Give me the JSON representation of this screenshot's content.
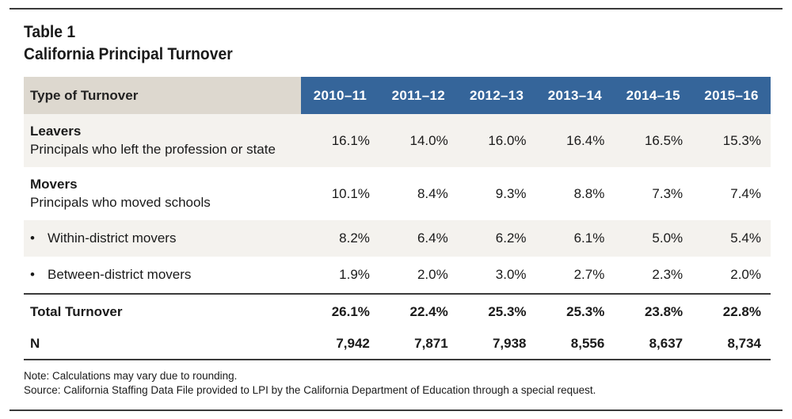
{
  "title": {
    "line1": "Table 1",
    "line2": "California Principal Turnover"
  },
  "table": {
    "header": {
      "label": "Type of Turnover",
      "years": [
        "2010–11",
        "2011–12",
        "2012–13",
        "2013–14",
        "2014–15",
        "2015–16"
      ]
    },
    "rows": [
      {
        "label": "Leavers",
        "sublabel": "Principals who left the profession or state",
        "values": [
          "16.1%",
          "14.0%",
          "16.0%",
          "16.4%",
          "16.5%",
          "15.3%"
        ]
      },
      {
        "label": "Movers",
        "sublabel": "Principals who moved schools",
        "values": [
          "10.1%",
          "8.4%",
          "9.3%",
          "8.8%",
          "7.3%",
          "7.4%"
        ]
      },
      {
        "bullet": "•",
        "label": "Within-district movers",
        "values": [
          "8.2%",
          "6.4%",
          "6.2%",
          "6.1%",
          "5.0%",
          "5.4%"
        ]
      },
      {
        "bullet": "•",
        "label": "Between-district movers",
        "values": [
          "1.9%",
          "2.0%",
          "3.0%",
          "2.7%",
          "2.3%",
          "2.0%"
        ]
      },
      {
        "label": "Total Turnover",
        "values": [
          "26.1%",
          "22.4%",
          "25.3%",
          "25.3%",
          "23.8%",
          "22.8%"
        ]
      },
      {
        "label": "N",
        "values": [
          "7,942",
          "7,871",
          "7,938",
          "8,556",
          "8,637",
          "8,734"
        ]
      }
    ]
  },
  "notes": {
    "note": "Note: Calculations may vary due to rounding.",
    "source": "Source: California Staffing Data File provided to LPI by the California Department of Education through a special request."
  },
  "colors": {
    "header_year_bg": "#35659a",
    "header_label_bg": "#ddd8cf",
    "row_shade": "#f4f2ee",
    "rule": "#3a3a3a"
  }
}
